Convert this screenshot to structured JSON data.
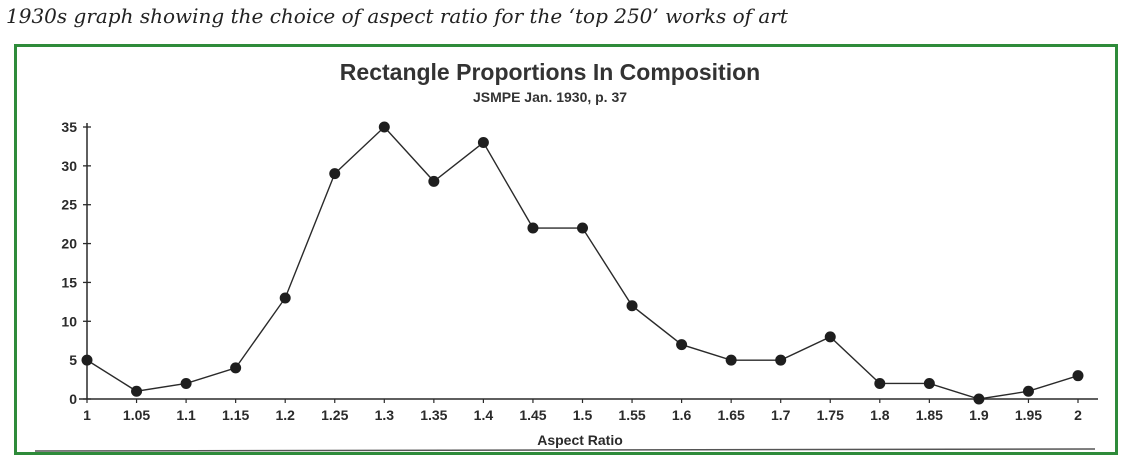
{
  "caption": "1930s graph showing the choice of aspect ratio for the ‘top 250’ works of art",
  "colors": {
    "frame": "#2e8b3a",
    "line": "#2a2a2a",
    "marker": "#1e1e1e"
  },
  "chart_data": {
    "type": "line",
    "title": "Rectangle Proportions In Composition",
    "subtitle": "JSMPE Jan. 1930, p. 37",
    "xlabel": "Aspect Ratio",
    "ylabel": "",
    "x": [
      "1",
      "1.05",
      "1.1",
      "1.15",
      "1.2",
      "1.25",
      "1.3",
      "1.35",
      "1.4",
      "1.45",
      "1.5",
      "1.55",
      "1.6",
      "1.65",
      "1.7",
      "1.75",
      "1.8",
      "1.85",
      "1.9",
      "1.95",
      "2"
    ],
    "series": [
      {
        "values": [
          5,
          1,
          2,
          4,
          13,
          29,
          35,
          28,
          33,
          22,
          22,
          12,
          7,
          5,
          5,
          8,
          2,
          2,
          0,
          1,
          3
        ]
      }
    ],
    "yticks": [
      "0",
      "5",
      "10",
      "15",
      "20",
      "25",
      "30",
      "35"
    ],
    "ylim": [
      0,
      35
    ],
    "grid": false,
    "legend": "none"
  }
}
